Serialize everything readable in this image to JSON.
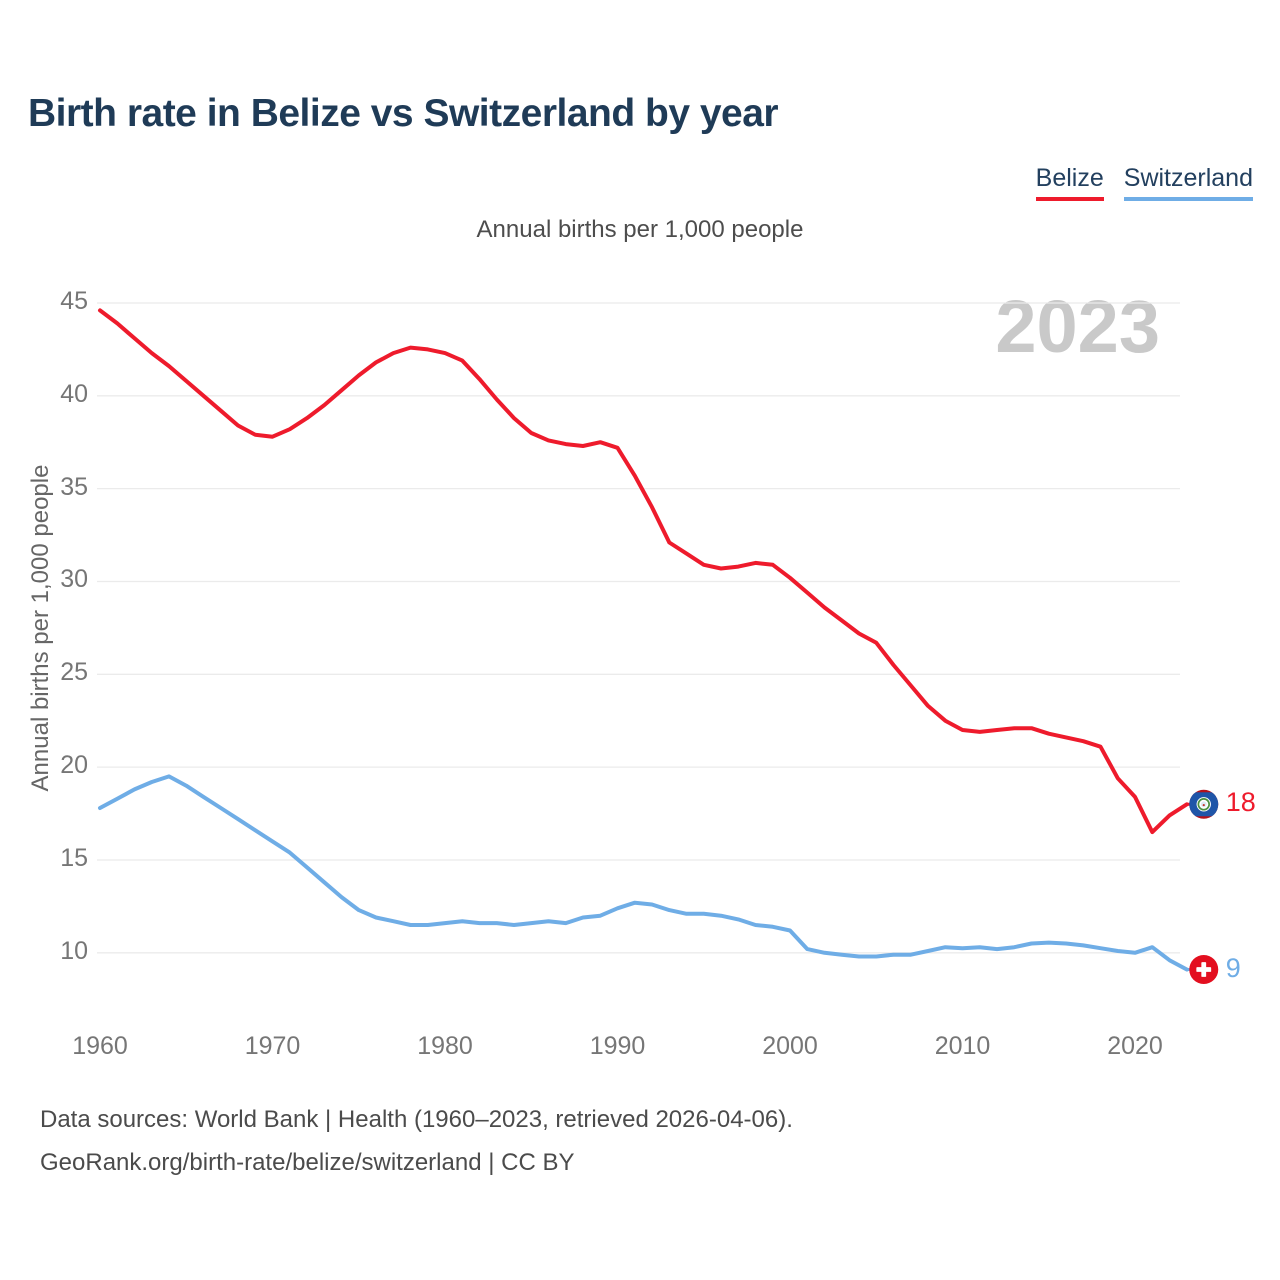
{
  "header": {
    "title": "Birth rate in Belize vs Switzerland by year"
  },
  "legend": {
    "items": [
      {
        "label": "Belize",
        "color": "#ee1b2c"
      },
      {
        "label": "Switzerland",
        "color": "#6fade6"
      }
    ]
  },
  "subtitle": "Annual births per 1,000 people",
  "watermark": "2023",
  "footer": {
    "line1": "Data sources: World Bank | Health (1960–2023, retrieved 2026-04-06).",
    "line2": "GeoRank.org/birth-rate/belize/switzerland | CC BY"
  },
  "chart_data": {
    "type": "line",
    "title": "Birth rate in Belize vs Switzerland by year",
    "subtitle": "Annual births per 1,000 people",
    "ylabel": "Annual births per 1,000 people",
    "xlabel": "",
    "grid": "horizontal",
    "legend_position": "top-right",
    "x_range": {
      "start": 1960,
      "end": 2023,
      "step": 1
    },
    "x_ticks": [
      1960,
      1970,
      1980,
      1990,
      2000,
      2010,
      2020
    ],
    "y_ticks": [
      10,
      15,
      20,
      25,
      30,
      35,
      40,
      45
    ],
    "ylim": [
      8.5,
      46
    ],
    "colors": {
      "grid": "#ebebeb",
      "tick_text": "#767676",
      "watermark": "#c9c9c9"
    },
    "series": [
      {
        "name": "Belize",
        "color": "#ee1b2c",
        "end_label": "18",
        "flag_icon": "belize-flag",
        "values": [
          44.6,
          43.9,
          43.1,
          42.3,
          41.6,
          40.8,
          40.0,
          39.2,
          38.4,
          37.9,
          37.8,
          38.2,
          38.8,
          39.5,
          40.3,
          41.1,
          41.8,
          42.3,
          42.6,
          42.5,
          42.3,
          41.9,
          40.9,
          39.8,
          38.8,
          38.0,
          37.6,
          37.4,
          37.3,
          37.5,
          37.2,
          35.7,
          34.0,
          32.1,
          31.5,
          30.9,
          30.7,
          30.8,
          31.0,
          30.9,
          30.2,
          29.4,
          28.6,
          27.9,
          27.2,
          26.7,
          25.5,
          24.4,
          23.3,
          22.5,
          22.0,
          21.9,
          22.0,
          22.1,
          22.1,
          21.8,
          21.6,
          21.4,
          21.1,
          19.4,
          18.4,
          16.5,
          17.4,
          18.0
        ]
      },
      {
        "name": "Switzerland",
        "color": "#6fade6",
        "end_label": "9",
        "flag_icon": "switzerland-flag",
        "values": [
          17.8,
          18.3,
          18.8,
          19.2,
          19.5,
          19.0,
          18.4,
          17.8,
          17.2,
          16.6,
          16.0,
          15.4,
          14.6,
          13.8,
          13.0,
          12.3,
          11.9,
          11.7,
          11.5,
          11.5,
          11.6,
          11.7,
          11.6,
          11.6,
          11.5,
          11.6,
          11.7,
          11.6,
          11.9,
          12.0,
          12.4,
          12.7,
          12.6,
          12.3,
          12.1,
          12.1,
          12.0,
          11.8,
          11.5,
          11.4,
          11.2,
          10.2,
          10.0,
          9.9,
          9.8,
          9.8,
          9.9,
          9.9,
          10.1,
          10.3,
          10.25,
          10.3,
          10.2,
          10.3,
          10.5,
          10.55,
          10.5,
          10.4,
          10.25,
          10.1,
          10.0,
          10.3,
          9.6,
          9.1
        ]
      }
    ]
  }
}
